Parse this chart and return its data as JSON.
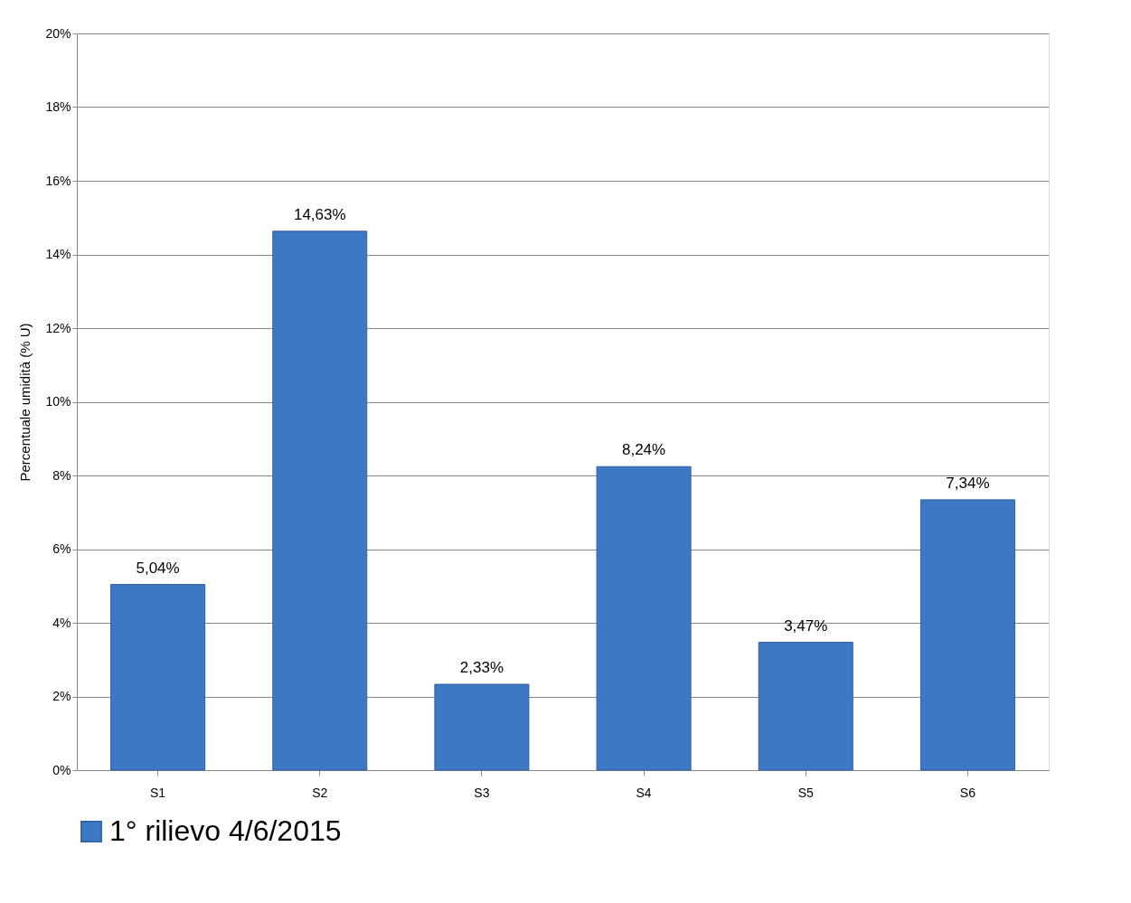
{
  "chart_data": {
    "type": "bar",
    "ylabel": "Percentuale umidità (% U)",
    "categories": [
      "S1",
      "S2",
      "S3",
      "S4",
      "S5",
      "S6"
    ],
    "series": [
      {
        "name": "1° rilievo 4/6/2015",
        "color": "#3d78c4",
        "values": [
          5.04,
          14.63,
          2.33,
          8.24,
          3.47,
          7.34
        ],
        "value_labels": [
          "5,04%",
          "14,63%",
          "2,33%",
          "8,24%",
          "3,47%",
          "7,34%"
        ]
      }
    ],
    "ylim": [
      0,
      20
    ],
    "yticks": [
      {
        "value": 0,
        "label": "0%"
      },
      {
        "value": 2,
        "label": "2%"
      },
      {
        "value": 4,
        "label": "4%"
      },
      {
        "value": 6,
        "label": "6%"
      },
      {
        "value": 8,
        "label": "8%"
      },
      {
        "value": 10,
        "label": "10%"
      },
      {
        "value": 12,
        "label": "12%"
      },
      {
        "value": 14,
        "label": "14%"
      },
      {
        "value": 16,
        "label": "16%"
      },
      {
        "value": 18,
        "label": "18%"
      },
      {
        "value": 20,
        "label": "20%"
      }
    ],
    "grid": "y",
    "legend": "bottom"
  }
}
